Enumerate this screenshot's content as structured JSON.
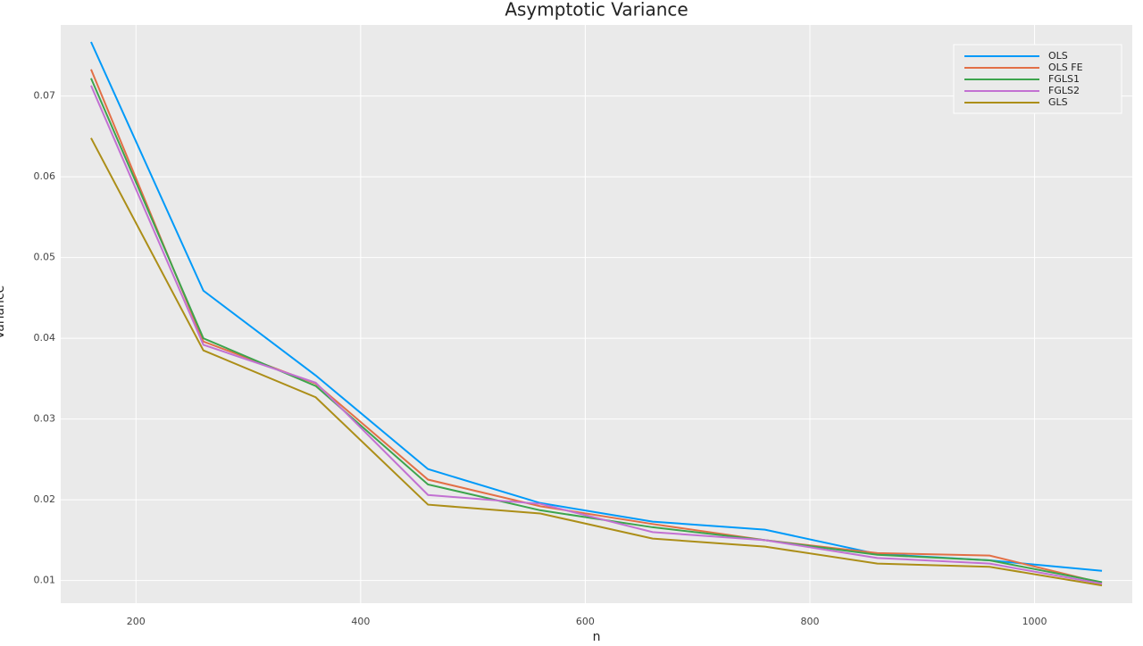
{
  "chart_data": {
    "type": "line",
    "title": "Asymptotic Variance",
    "x_label": "n",
    "y_label": "Variance",
    "x": [
      160,
      260,
      360,
      460,
      560,
      660,
      760,
      860,
      960,
      1060
    ],
    "series": [
      {
        "name": "OLS",
        "color": "#009af9",
        "values": [
          0.0767,
          0.0459,
          0.0354,
          0.0238,
          0.0196,
          0.0173,
          0.0163,
          0.0133,
          0.0125,
          0.0112
        ]
      },
      {
        "name": "OLS FE",
        "color": "#e26f46",
        "values": [
          0.0733,
          0.0396,
          0.0344,
          0.0225,
          0.0192,
          0.017,
          0.015,
          0.0134,
          0.0131,
          0.0097
        ]
      },
      {
        "name": "FGLS1",
        "color": "#3da44d",
        "values": [
          0.0722,
          0.04,
          0.0341,
          0.0219,
          0.0187,
          0.0166,
          0.015,
          0.0132,
          0.0125,
          0.0098
        ]
      },
      {
        "name": "FGLS2",
        "color": "#c271d2",
        "values": [
          0.0713,
          0.0392,
          0.0345,
          0.0206,
          0.0195,
          0.016,
          0.015,
          0.0128,
          0.0121,
          0.0096
        ]
      },
      {
        "name": "GLS",
        "color": "#ac8e18",
        "values": [
          0.0648,
          0.0385,
          0.0327,
          0.0194,
          0.0183,
          0.0152,
          0.0142,
          0.0121,
          0.0117,
          0.0094
        ]
      }
    ],
    "xlim": [
      133,
      1087
    ],
    "ylim": [
      0.0072,
      0.0788
    ],
    "xticks": [
      200,
      400,
      600,
      800,
      1000
    ],
    "yticks": [
      0.01,
      0.02,
      0.03,
      0.04,
      0.05,
      0.06,
      0.07
    ],
    "grid": true,
    "legend_position": "top-right"
  }
}
